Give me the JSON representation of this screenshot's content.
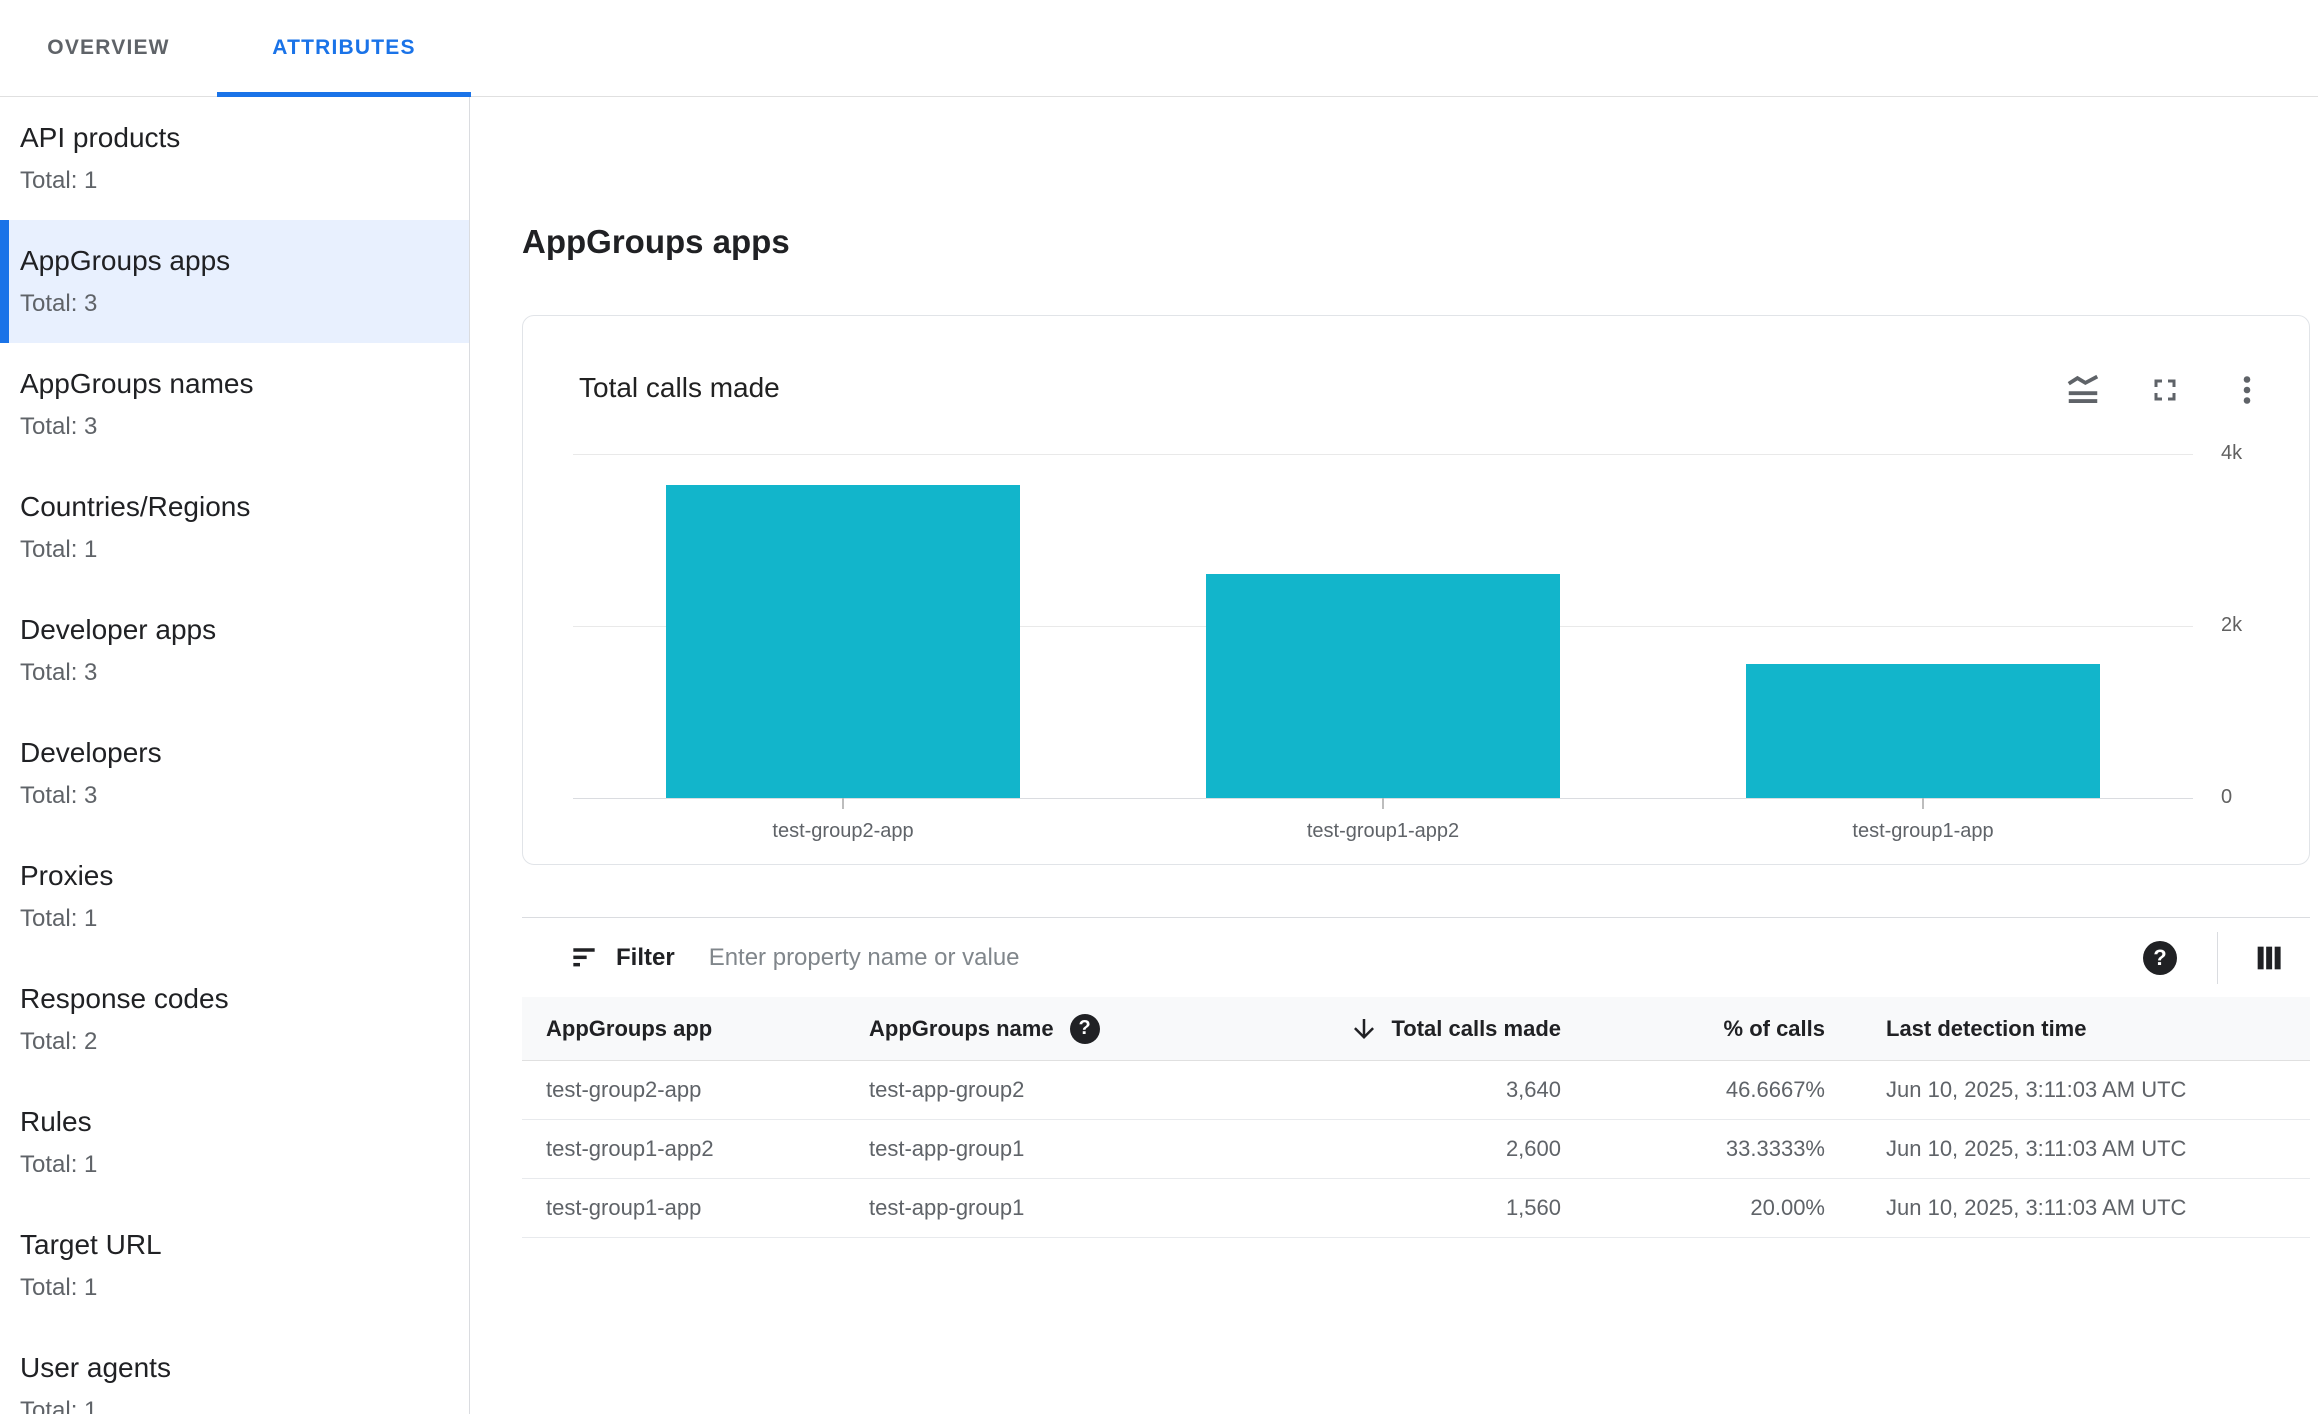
{
  "tabs": [
    {
      "label": "OVERVIEW",
      "active": false
    },
    {
      "label": "ATTRIBUTES",
      "active": true
    }
  ],
  "sidebar": {
    "items": [
      {
        "label": "API products",
        "total": "Total: 1",
        "selected": false
      },
      {
        "label": "AppGroups apps",
        "total": "Total: 3",
        "selected": true
      },
      {
        "label": "AppGroups names",
        "total": "Total: 3",
        "selected": false
      },
      {
        "label": "Countries/Regions",
        "total": "Total: 1",
        "selected": false
      },
      {
        "label": "Developer apps",
        "total": "Total: 3",
        "selected": false
      },
      {
        "label": "Developers",
        "total": "Total: 3",
        "selected": false
      },
      {
        "label": "Proxies",
        "total": "Total: 1",
        "selected": false
      },
      {
        "label": "Response codes",
        "total": "Total: 2",
        "selected": false
      },
      {
        "label": "Rules",
        "total": "Total: 1",
        "selected": false
      },
      {
        "label": "Target URL",
        "total": "Total: 1",
        "selected": false
      },
      {
        "label": "User agents",
        "total": "Total: 1",
        "selected": false
      }
    ]
  },
  "page": {
    "title": "AppGroups apps"
  },
  "chart_card": {
    "title": "Total calls made",
    "icons": [
      "area-chart-icon",
      "fullscreen-icon",
      "more-vert-icon"
    ]
  },
  "chart_data": {
    "type": "bar",
    "title": "Total calls made",
    "categories": [
      "test-group2-app",
      "test-group1-app2",
      "test-group1-app"
    ],
    "values": [
      3640,
      2600,
      1560
    ],
    "xlabel": "",
    "ylabel": "",
    "ylim": [
      0,
      4000
    ],
    "yticks": [
      {
        "value": 0,
        "label": "0"
      },
      {
        "value": 2000,
        "label": "2k"
      },
      {
        "value": 4000,
        "label": "4k"
      }
    ],
    "grid": true,
    "legend": false,
    "bar_color": "#12b5cb"
  },
  "filter": {
    "label": "Filter",
    "placeholder": "Enter property name or value"
  },
  "table": {
    "columns": [
      {
        "label": "AppGroups app"
      },
      {
        "label": "AppGroups name",
        "help_icon": "?"
      },
      {
        "label": "Total calls made",
        "sorted": "desc"
      },
      {
        "label": "% of calls"
      },
      {
        "label": "Last detection time"
      }
    ],
    "rows": [
      [
        "test-group2-app",
        "test-app-group2",
        "3,640",
        "46.6667%",
        "Jun 10, 2025, 3:11:03 AM UTC"
      ],
      [
        "test-group1-app2",
        "test-app-group1",
        "2,600",
        "33.3333%",
        "Jun 10, 2025, 3:11:03 AM UTC"
      ],
      [
        "test-group1-app",
        "test-app-group1",
        "1,560",
        "20.00%",
        "Jun 10, 2025, 3:11:03 AM UTC"
      ]
    ]
  },
  "colors": {
    "accent": "#1a73e8",
    "bar": "#12b5cb",
    "selected_bg": "#e8f0fe"
  }
}
